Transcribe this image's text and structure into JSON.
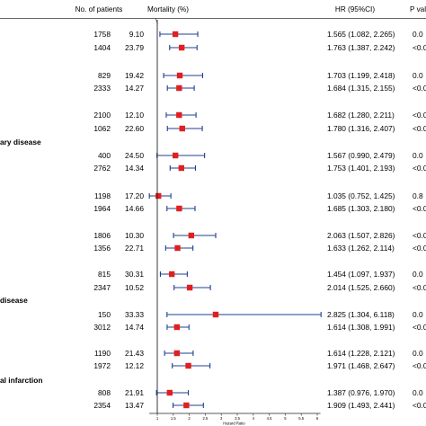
{
  "columns": {
    "patients": "No. of patients",
    "mortality": "Mortality (%)",
    "hr": "HR (95%CI)",
    "p": "P val"
  },
  "groups": [
    {
      "label": ""
    },
    {
      "label": ""
    },
    {
      "label": ""
    },
    {
      "label": ""
    },
    {
      "label": "ary disease"
    },
    {
      "label": ""
    },
    {
      "label": ""
    },
    {
      "label": ""
    },
    {
      "label": "disease"
    },
    {
      "label": ""
    },
    {
      "label": "al infarction"
    }
  ],
  "chart_data": {
    "type": "forest",
    "xlabel": "Hazard Ratio",
    "xticks": [
      "1",
      "1.5",
      "2",
      "2.5",
      "3",
      "3.5",
      "4",
      "4.5",
      "5",
      "5.5",
      "6"
    ],
    "xlim": [
      0.75,
      6.1
    ],
    "reference_line": 1,
    "marker_color": "#e02020",
    "ci_color": "#1f3f8f",
    "rows": [
      {
        "group": 0,
        "patients": "1758",
        "mortality": "9.10",
        "hr": 1.565,
        "lo": 1.082,
        "hi": 2.265,
        "hr_text": "1.565 (1.082, 2.265)",
        "p": "0.0"
      },
      {
        "group": 0,
        "patients": "1404",
        "mortality": "23.79",
        "hr": 1.763,
        "lo": 1.387,
        "hi": 2.242,
        "hr_text": "1.763 (1.387, 2.242)",
        "p": "<0.0"
      },
      {
        "group": 1,
        "patients": "829",
        "mortality": "19.42",
        "hr": 1.703,
        "lo": 1.199,
        "hi": 2.418,
        "hr_text": "1.703 (1.199, 2.418)",
        "p": "0.0"
      },
      {
        "group": 1,
        "patients": "2333",
        "mortality": "14.27",
        "hr": 1.684,
        "lo": 1.315,
        "hi": 2.155,
        "hr_text": "1.684 (1.315, 2.155)",
        "p": "<0.0"
      },
      {
        "group": 2,
        "patients": "2100",
        "mortality": "12.10",
        "hr": 1.682,
        "lo": 1.28,
        "hi": 2.211,
        "hr_text": "1.682 (1.280, 2.211)",
        "p": "<0.0"
      },
      {
        "group": 2,
        "patients": "1062",
        "mortality": "22.60",
        "hr": 1.78,
        "lo": 1.316,
        "hi": 2.407,
        "hr_text": "1.780 (1.316, 2.407)",
        "p": "<0.0"
      },
      {
        "group": 3,
        "patients": "400",
        "mortality": "24.50",
        "hr": 1.567,
        "lo": 0.99,
        "hi": 2.479,
        "hr_text": "1.567 (0.990, 2.479)",
        "p": "0.0"
      },
      {
        "group": 3,
        "patients": "2762",
        "mortality": "14.34",
        "hr": 1.753,
        "lo": 1.401,
        "hi": 2.193,
        "hr_text": "1.753 (1.401, 2.193)",
        "p": "<0.0"
      },
      {
        "group": 4,
        "patients": "1198",
        "mortality": "17.20",
        "hr": 1.035,
        "lo": 0.752,
        "hi": 1.425,
        "hr_text": "1.035 (0.752, 1.425)",
        "p": "0.8"
      },
      {
        "group": 4,
        "patients": "1964",
        "mortality": "14.66",
        "hr": 1.685,
        "lo": 1.303,
        "hi": 2.18,
        "hr_text": "1.685 (1.303, 2.180)",
        "p": "<0.0"
      },
      {
        "group": 5,
        "patients": "1806",
        "mortality": "10.30",
        "hr": 2.063,
        "lo": 1.507,
        "hi": 2.826,
        "hr_text": "2.063 (1.507, 2.826)",
        "p": "<0.0"
      },
      {
        "group": 5,
        "patients": "1356",
        "mortality": "22.71",
        "hr": 1.633,
        "lo": 1.262,
        "hi": 2.114,
        "hr_text": "1.633 (1.262, 2.114)",
        "p": "<0.0"
      },
      {
        "group": 6,
        "patients": "815",
        "mortality": "30.31",
        "hr": 1.454,
        "lo": 1.097,
        "hi": 1.937,
        "hr_text": "1.454 (1.097, 1.937)",
        "p": "0.0"
      },
      {
        "group": 6,
        "patients": "2347",
        "mortality": "10.52",
        "hr": 2.014,
        "lo": 1.525,
        "hi": 2.66,
        "hr_text": "2.014 (1.525, 2.660)",
        "p": "<0.0"
      },
      {
        "group": 7,
        "patients": "150",
        "mortality": "33.33",
        "hr": 2.825,
        "lo": 1.304,
        "hi": 6.118,
        "hr_text": "2.825 (1.304, 6.118)",
        "p": "0.0"
      },
      {
        "group": 7,
        "patients": "3012",
        "mortality": "14.74",
        "hr": 1.614,
        "lo": 1.308,
        "hi": 1.991,
        "hr_text": "1.614 (1.308, 1.991)",
        "p": "<0.0"
      },
      {
        "group": 8,
        "patients": "1190",
        "mortality": "21.43",
        "hr": 1.614,
        "lo": 1.228,
        "hi": 2.121,
        "hr_text": "1.614 (1.228, 2.121)",
        "p": "0.0"
      },
      {
        "group": 8,
        "patients": "1972",
        "mortality": "12.12",
        "hr": 1.971,
        "lo": 1.468,
        "hi": 2.647,
        "hr_text": "1.971 (1.468, 2.647)",
        "p": "<0.0"
      },
      {
        "group": 9,
        "patients": "808",
        "mortality": "21.91",
        "hr": 1.387,
        "lo": 0.976,
        "hi": 1.97,
        "hr_text": "1.387 (0.976, 1.970)",
        "p": "0.0"
      },
      {
        "group": 9,
        "patients": "2354",
        "mortality": "13.47",
        "hr": 1.909,
        "lo": 1.493,
        "hi": 2.441,
        "hr_text": "1.909 (1.493, 2.441)",
        "p": "<0.0"
      }
    ]
  }
}
